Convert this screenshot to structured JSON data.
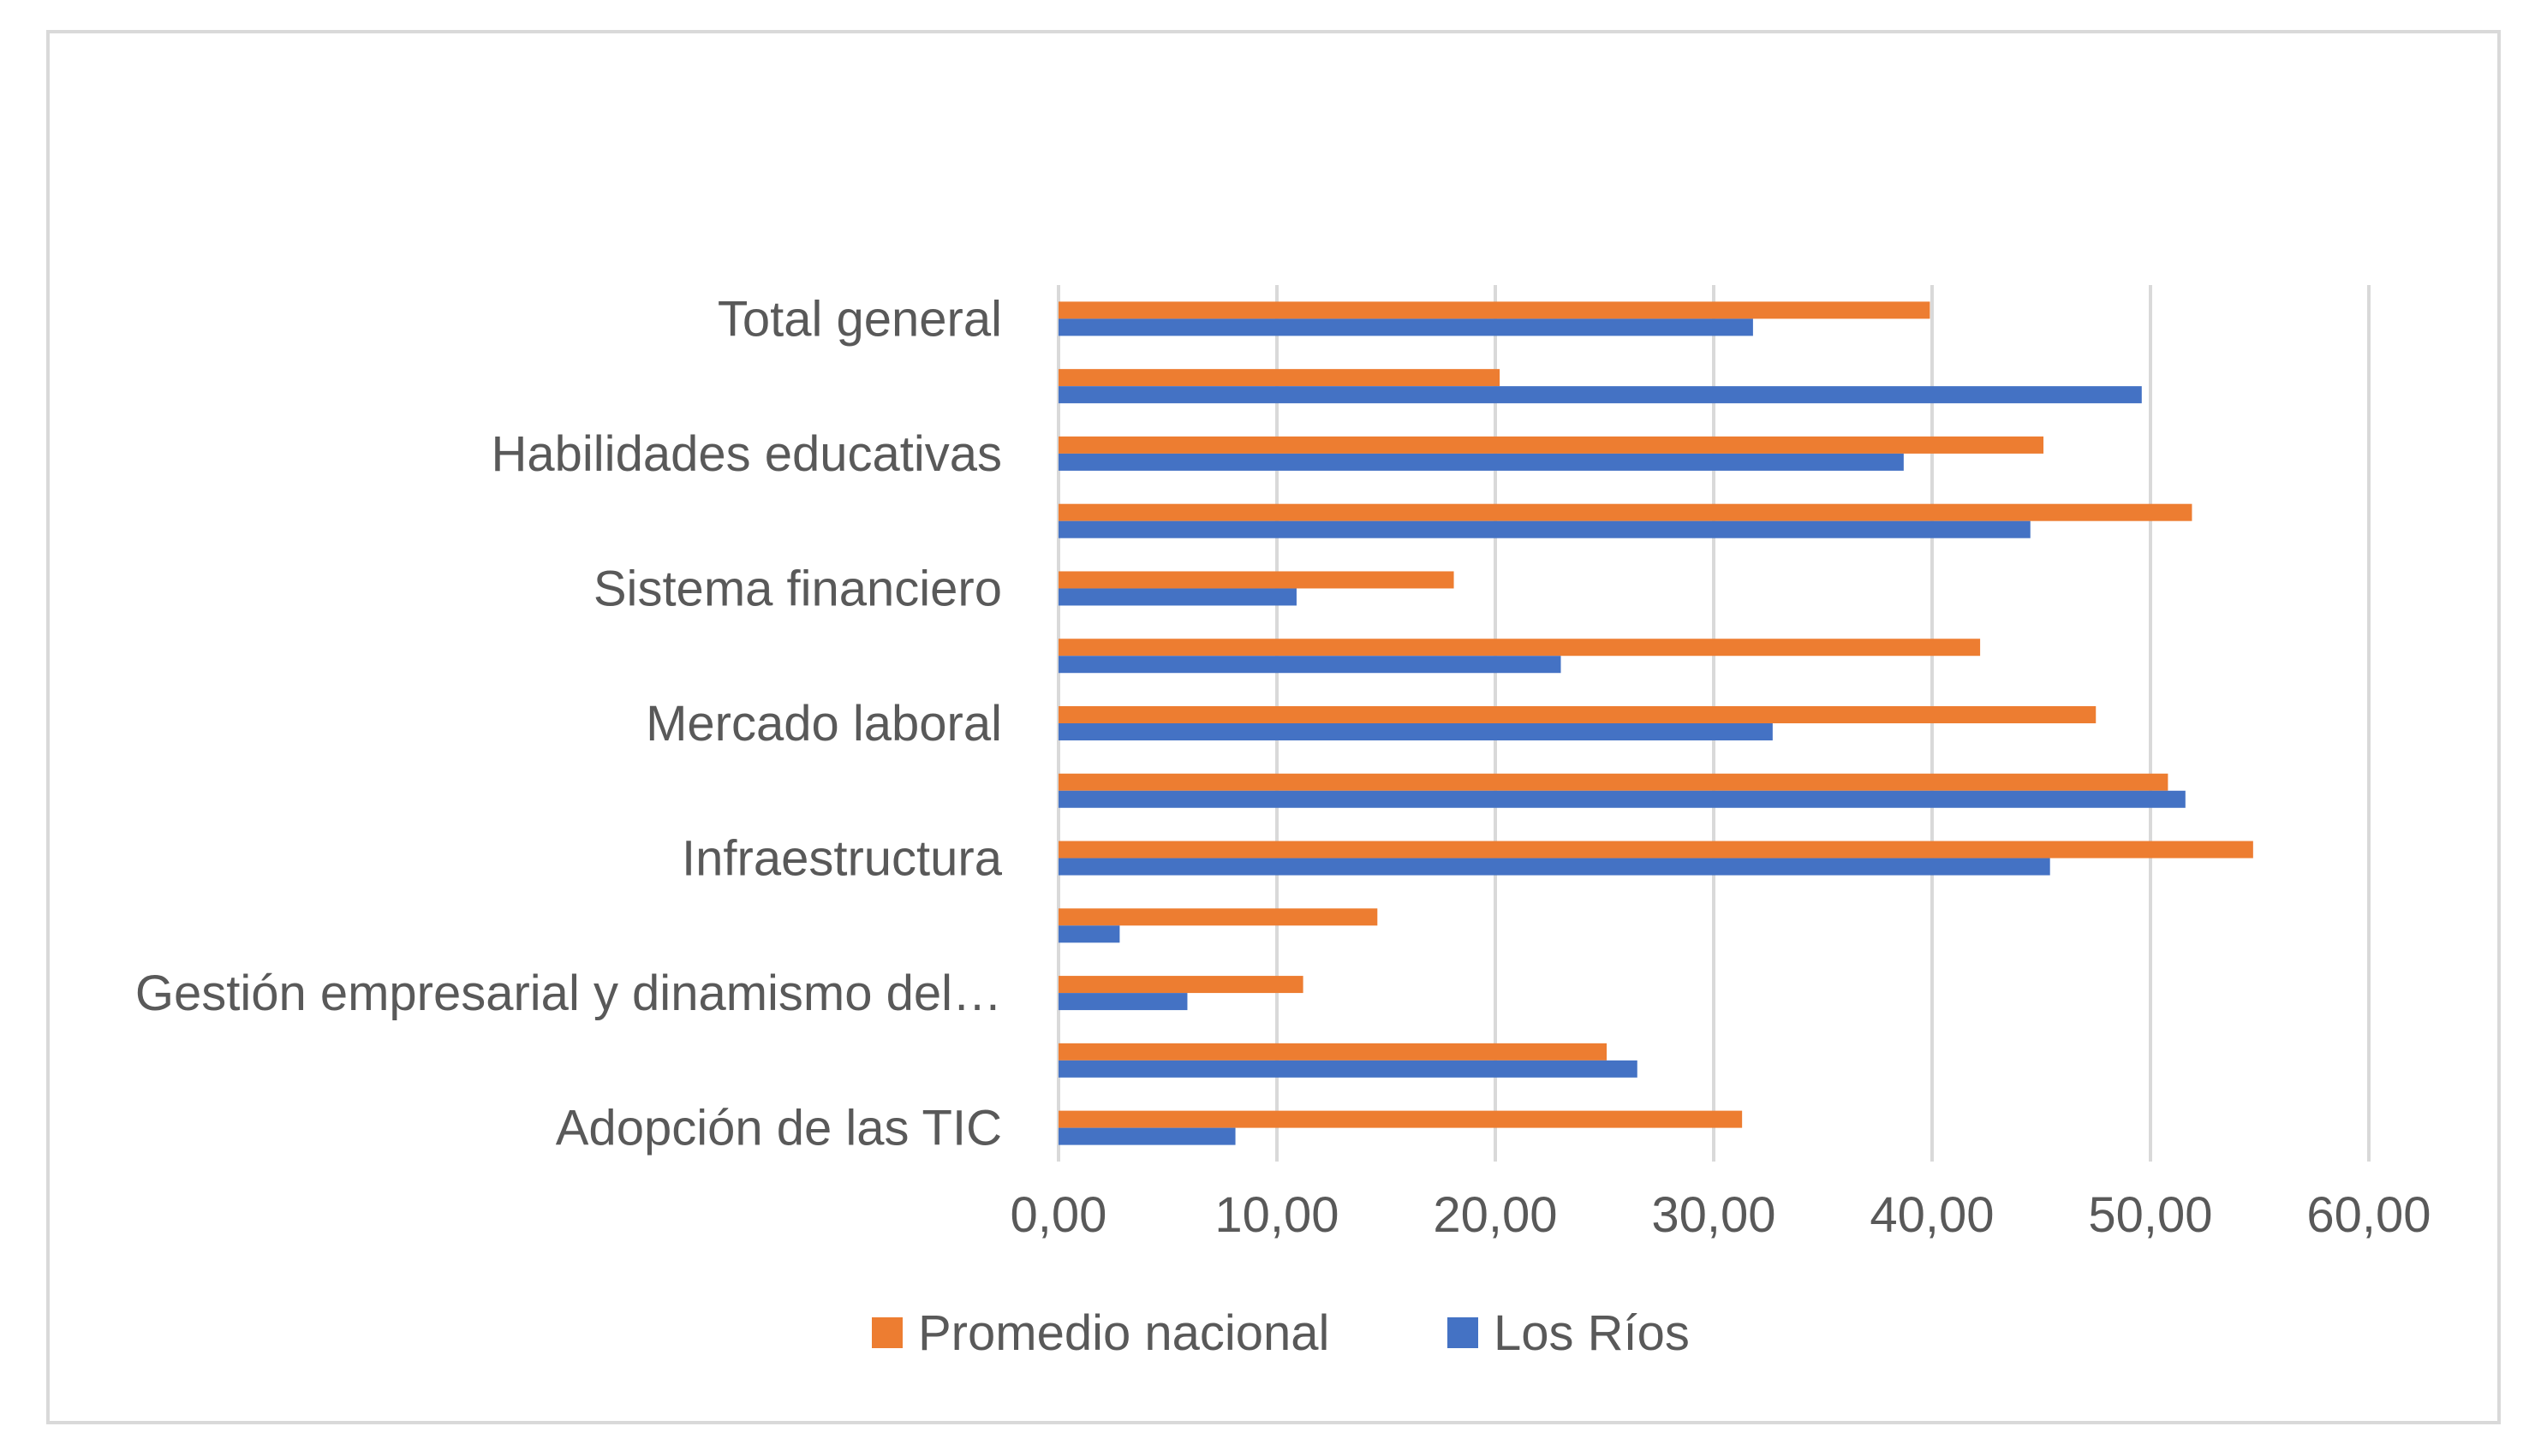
{
  "chart_data": {
    "type": "bar",
    "orientation": "horizontal",
    "title": "",
    "xlabel": "",
    "ylabel": "",
    "xlim": [
      0,
      60
    ],
    "x_ticks": [
      "0,00",
      "10,00",
      "20,00",
      "30,00",
      "40,00",
      "50,00",
      "60,00"
    ],
    "grid": true,
    "legend_position": "bottom",
    "categories": [
      "Total general",
      "",
      "Habilidades educativas",
      "",
      "Sistema financiero",
      "",
      "Mercado laboral",
      "",
      "Infraestructura",
      "",
      "Gestión empresarial y dinamismo del…",
      "",
      "Adopción de las TIC"
    ],
    "series": [
      {
        "name": "Promedio nacional",
        "color": "#ed7d31",
        "values": [
          39.9,
          20.2,
          45.1,
          51.9,
          18.1,
          42.2,
          47.5,
          50.8,
          54.7,
          14.6,
          11.2,
          25.1,
          31.3
        ]
      },
      {
        "name": "Los Ríos",
        "color": "#4472c4",
        "values": [
          31.8,
          49.6,
          38.7,
          44.5,
          10.9,
          23.0,
          32.7,
          51.6,
          45.4,
          2.8,
          5.9,
          26.5,
          8.1
        ]
      }
    ]
  }
}
